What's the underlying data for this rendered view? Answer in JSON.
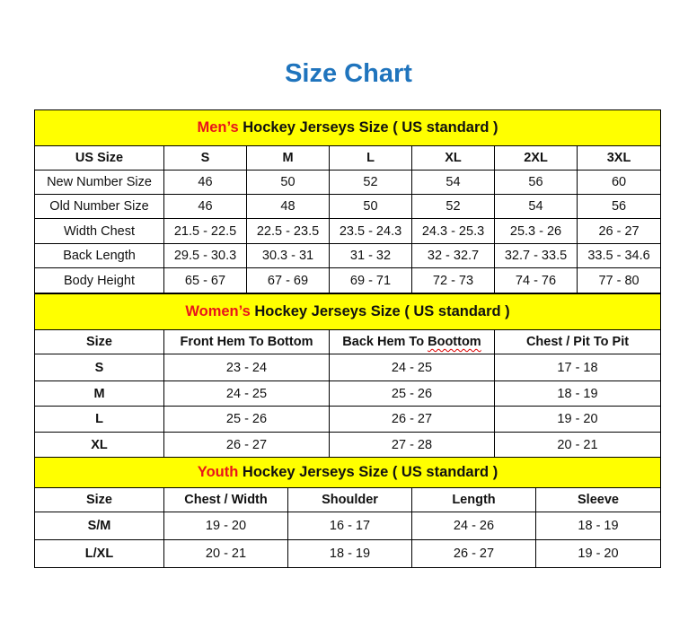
{
  "title": "Size Chart",
  "colors": {
    "title": "#1f74bd",
    "section_bg": "#ffff00",
    "accent": "#e8141c"
  },
  "mens": {
    "accent": "Men’s",
    "heading": " Hockey Jerseys Size ( US standard )",
    "headers": [
      "US Size",
      "S",
      "M",
      "L",
      "XL",
      "2XL",
      "3XL"
    ],
    "rows": [
      [
        "New Number Size",
        "46",
        "50",
        "52",
        "54",
        "56",
        "60"
      ],
      [
        "Old Number Size",
        "46",
        "48",
        "50",
        "52",
        "54",
        "56"
      ],
      [
        "Width Chest",
        "21.5 - 22.5",
        "22.5 - 23.5",
        "23.5 - 24.3",
        "24.3 - 25.3",
        "25.3 - 26",
        "26 - 27"
      ],
      [
        "Back Length",
        "29.5 - 30.3",
        "30.3 - 31",
        "31 - 32",
        "32 - 32.7",
        "32.7 - 33.5",
        "33.5 - 34.6"
      ],
      [
        "Body Height",
        "65 - 67",
        "67 - 69",
        "69 - 71",
        "72 - 73",
        "74 - 76",
        "77 - 80"
      ]
    ]
  },
  "womens": {
    "accent": "Women’s",
    "heading": " Hockey Jerseys Size ( US standard )",
    "headers": [
      "Size",
      "Front Hem To Bottom",
      "Back Hem To Boottom",
      "Chest / Pit To Pit"
    ],
    "rows": [
      [
        "S",
        "23 - 24",
        "24 - 25",
        "17 - 18"
      ],
      [
        "M",
        "24 - 25",
        "25 - 26",
        "18 - 19"
      ],
      [
        "L",
        "25 - 26",
        "26 - 27",
        "19 - 20"
      ],
      [
        "XL",
        "26 - 27",
        "27 - 28",
        "20 - 21"
      ]
    ]
  },
  "youth": {
    "accent": "Youth",
    "heading": " Hockey Jerseys Size ( US standard )",
    "headers": [
      "Size",
      "Chest / Width",
      "Shoulder",
      "Length",
      "Sleeve"
    ],
    "rows": [
      [
        "S/M",
        "19 - 20",
        "16 - 17",
        "24 - 26",
        "18 - 19"
      ],
      [
        "L/XL",
        "20 - 21",
        "18 - 19",
        "26 - 27",
        "19 - 20"
      ]
    ]
  }
}
